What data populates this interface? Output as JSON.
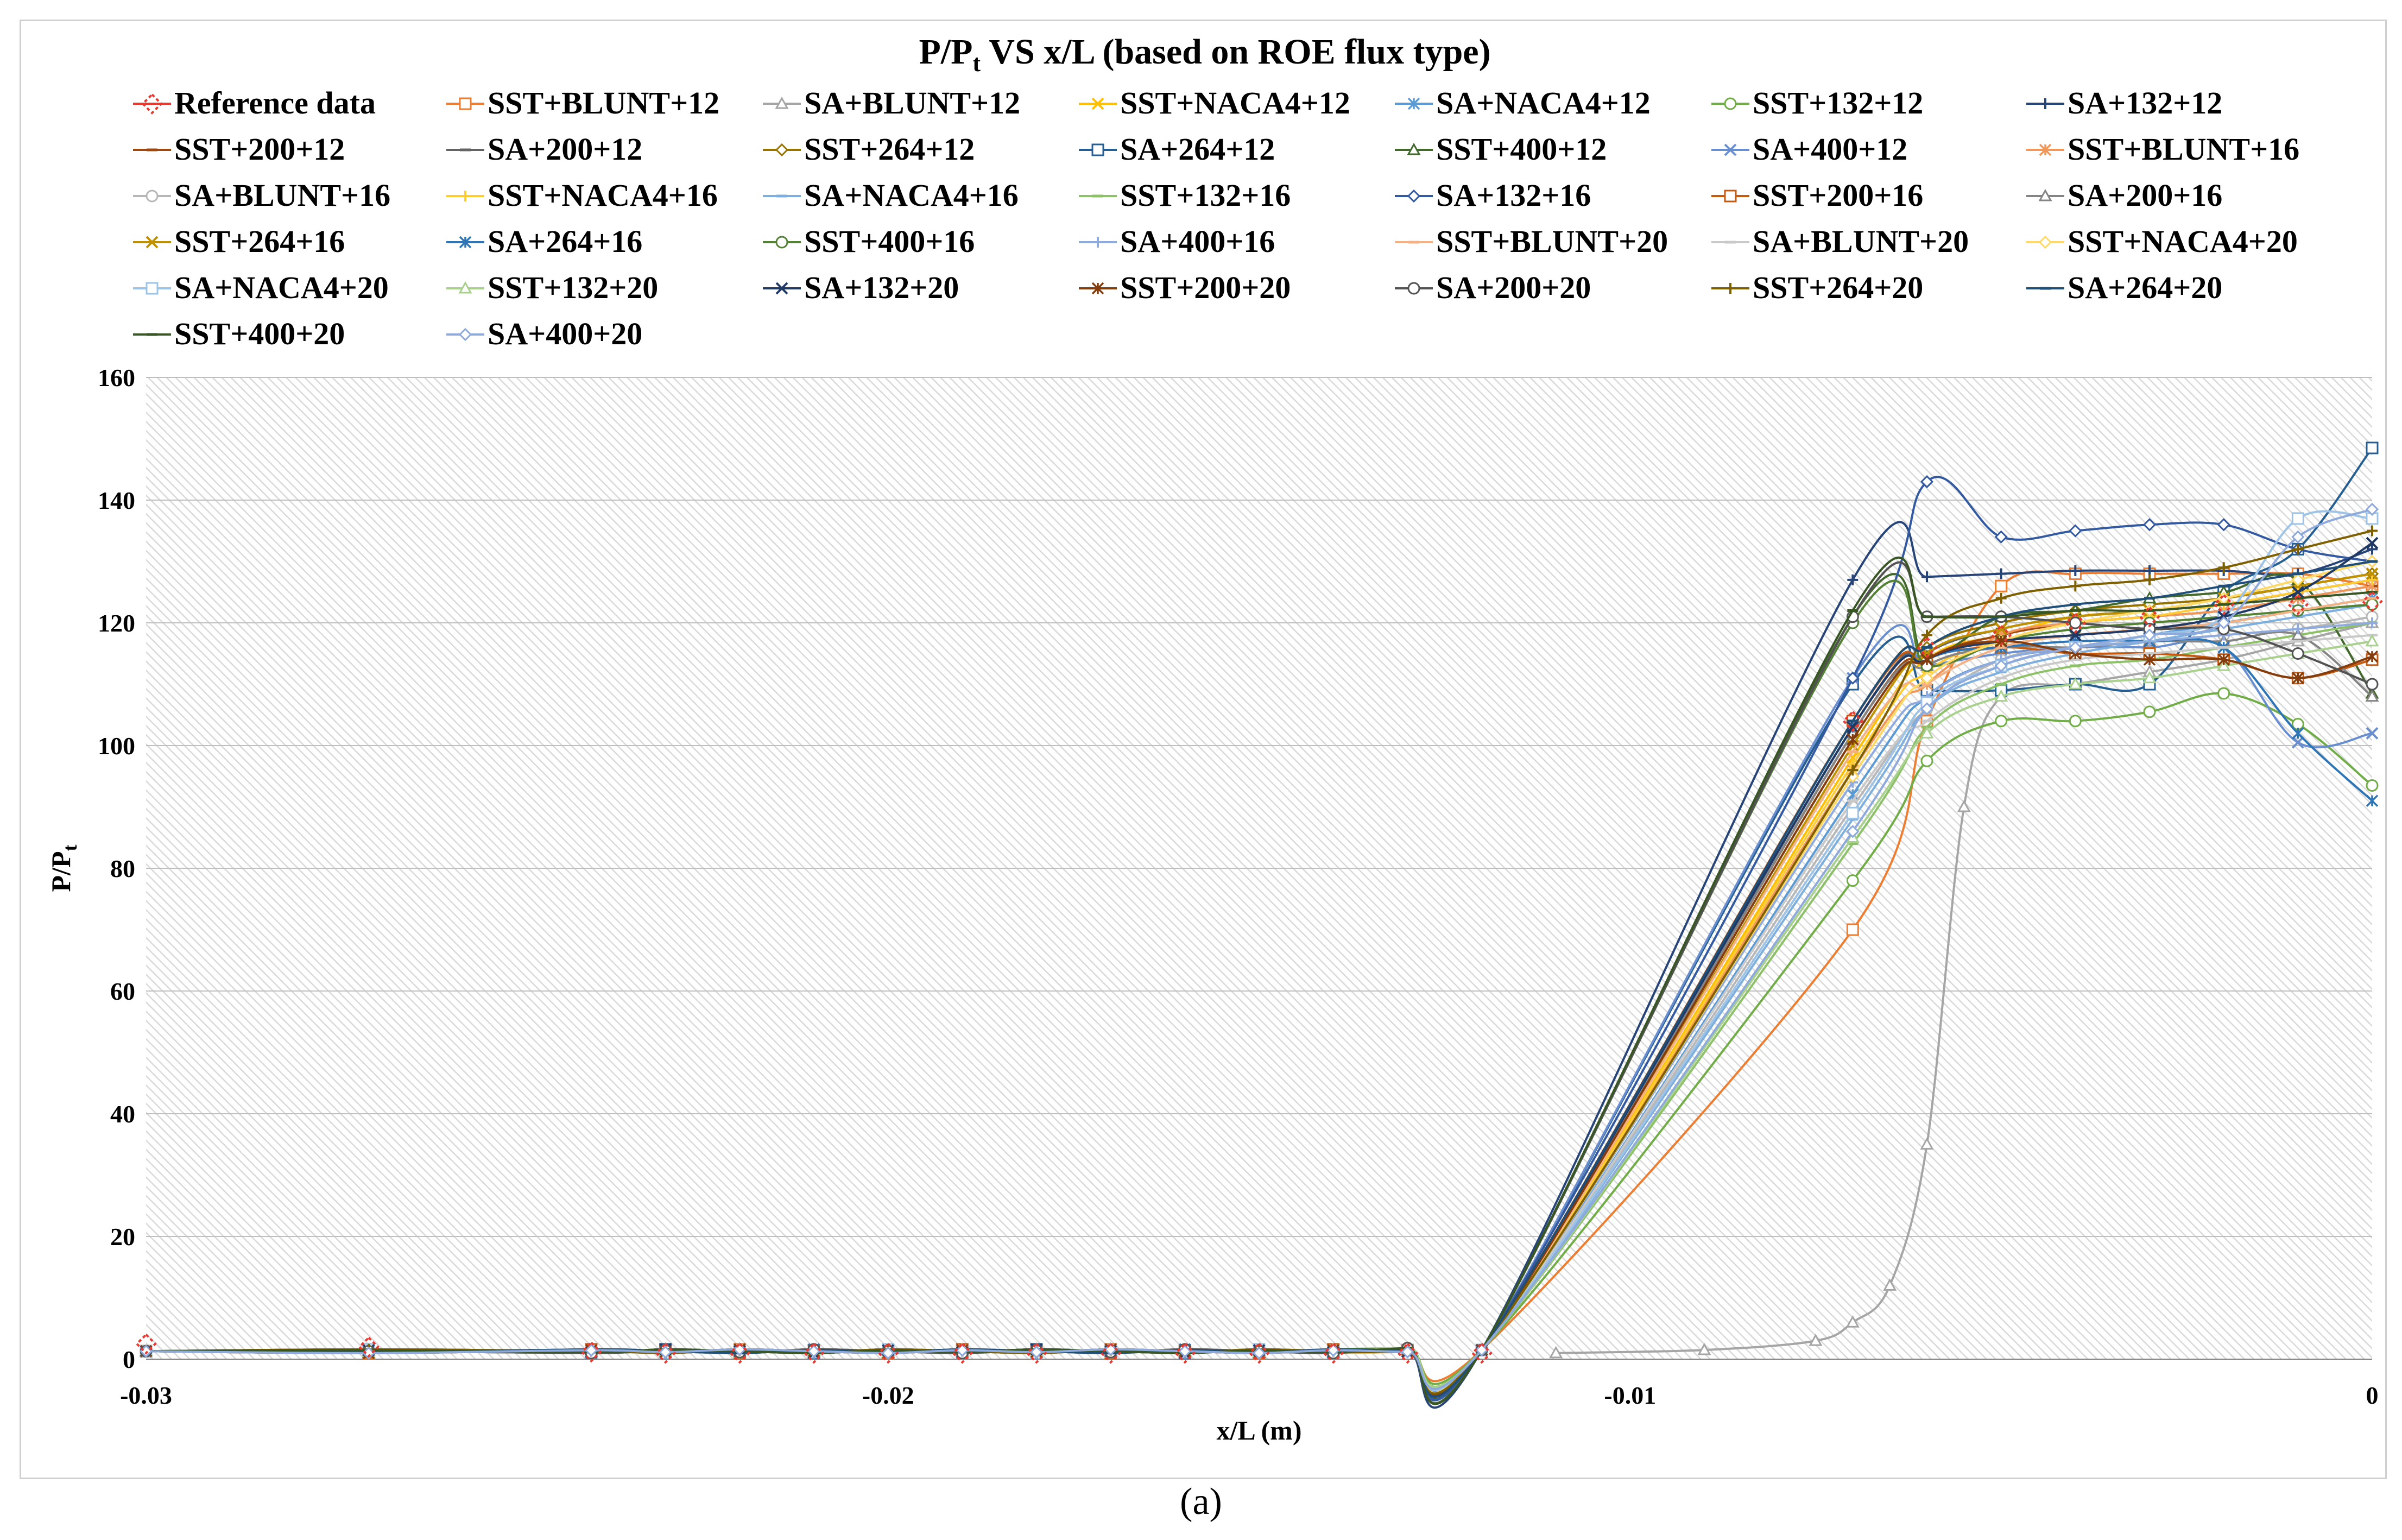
{
  "caption": "(a)",
  "chart_data": {
    "type": "line",
    "title_main": "P/P",
    "title_sub": "t",
    "title_rest": " VS x/L (based on ROE flux type)",
    "xlabel": "x/L (m)",
    "ylabel_main": "P/P",
    "ylabel_sub": "t",
    "xlim": [
      -0.03,
      0
    ],
    "ylim": [
      0,
      160
    ],
    "xticks": [
      {
        "v": -0.03,
        "label": "-0.03"
      },
      {
        "v": -0.02,
        "label": "-0.02"
      },
      {
        "v": -0.01,
        "label": "-0.01"
      },
      {
        "v": 0,
        "label": "0"
      }
    ],
    "yticks": [
      {
        "v": 0,
        "label": "0"
      },
      {
        "v": 20,
        "label": "20"
      },
      {
        "v": 40,
        "label": "40"
      },
      {
        "v": 60,
        "label": "60"
      },
      {
        "v": 80,
        "label": "80"
      },
      {
        "v": 100,
        "label": "100"
      },
      {
        "v": 120,
        "label": "120"
      },
      {
        "v": 140,
        "label": "140"
      },
      {
        "v": 160,
        "label": "160"
      }
    ],
    "legend_position": "top",
    "pre_x": [
      -0.03,
      -0.027,
      -0.024,
      -0.023,
      -0.022,
      -0.021,
      -0.02,
      -0.019,
      -0.018,
      -0.017,
      -0.016,
      -0.015,
      -0.014,
      -0.013,
      -0.012
    ],
    "post_x": [
      -0.007,
      -0.006,
      -0.005,
      -0.004,
      -0.003,
      -0.002,
      -0.001,
      0
    ],
    "series": [
      {
        "name": "Reference data",
        "color": "#e8382f",
        "marker": "diamond-dashed",
        "reference": true,
        "x": [
          -0.03,
          -0.027,
          -0.024,
          -0.023,
          -0.022,
          -0.021,
          -0.02,
          -0.019,
          -0.018,
          -0.017,
          -0.016,
          -0.015,
          -0.014,
          -0.013,
          -0.012,
          -0.011,
          -0.007,
          -0.006,
          -0.005,
          -0.004,
          -0.003,
          -0.002,
          -0.001,
          0
        ],
        "y": [
          2.5,
          2,
          1.2,
          1,
          1,
          1,
          1,
          1,
          1,
          1,
          1,
          1,
          1,
          1,
          1,
          null,
          104,
          116,
          118,
          120,
          121,
          123,
          123,
          123.5
        ]
      },
      {
        "name": "SST+BLUNT+12",
        "color": "#ed7d31",
        "marker": "square",
        "post": [
          70,
          104,
          126,
          128,
          128,
          128,
          128,
          126
        ]
      },
      {
        "name": "SA+BLUNT+12",
        "color": "#a5a5a5",
        "marker": "triangle",
        "x": [
          -0.011,
          -0.009,
          -0.0075,
          -0.007,
          -0.0065,
          -0.006,
          -0.0055,
          -0.005,
          -0.004,
          -0.003,
          -0.002,
          -0.001,
          0
        ],
        "y": [
          1,
          1.5,
          3,
          6,
          12,
          35,
          90,
          108,
          110,
          112,
          114,
          117,
          120
        ]
      },
      {
        "name": "SST+NACA4+12",
        "color": "#ffc000",
        "marker": "x",
        "post": [
          98,
          114,
          118,
          121,
          122,
          124,
          126,
          128
        ]
      },
      {
        "name": "SA+NACA4+12",
        "color": "#5b9bd5",
        "marker": "star",
        "post": [
          92,
          108,
          114,
          116,
          118,
          120,
          122,
          124
        ]
      },
      {
        "name": "SST+132+12",
        "color": "#70ad47",
        "marker": "circle",
        "post": [
          78,
          97.5,
          104,
          104,
          105.5,
          108.5,
          103.5,
          93.5
        ]
      },
      {
        "name": "SA+132+12",
        "color": "#264478",
        "marker": "plus",
        "post": [
          127,
          127.5,
          128,
          128.5,
          128.5,
          128.5,
          128,
          132
        ]
      },
      {
        "name": "SST+200+12",
        "color": "#9e480e",
        "marker": "dash",
        "post": [
          102,
          114,
          118,
          120,
          121,
          122,
          124,
          126
        ]
      },
      {
        "name": "SA+200+12",
        "color": "#636363",
        "marker": "dash",
        "post": [
          103,
          115,
          119,
          121,
          122,
          123,
          125,
          127
        ]
      },
      {
        "name": "SST+264+12",
        "color": "#997300",
        "marker": "diamond",
        "post": [
          104,
          116,
          120,
          122,
          123,
          124,
          126,
          128
        ]
      },
      {
        "name": "SA+264+12",
        "color": "#255e91",
        "marker": "square",
        "post": [
          110,
          109,
          109,
          110,
          110,
          125,
          132,
          148.5
        ]
      },
      {
        "name": "SST+400+12",
        "color": "#43682b",
        "marker": "triangle",
        "post": [
          121,
          114.5,
          121,
          122,
          124,
          125,
          127,
          108.5
        ]
      },
      {
        "name": "SA+400+12",
        "color": "#698ed0",
        "marker": "x",
        "post": [
          111,
          113,
          115,
          116,
          116,
          116,
          100.5,
          102
        ]
      },
      {
        "name": "SST+BLUNT+16",
        "color": "#f1975a",
        "marker": "star",
        "post": [
          96,
          110,
          118,
          120,
          121,
          122,
          124,
          126
        ]
      },
      {
        "name": "SA+BLUNT+16",
        "color": "#b7b7b7",
        "marker": "circle",
        "post": [
          90,
          106,
          114,
          116,
          117,
          118,
          119,
          121
        ]
      },
      {
        "name": "SST+NACA4+16",
        "color": "#ffcd33",
        "marker": "plus",
        "post": [
          97,
          112,
          117,
          120,
          121,
          123,
          125,
          127
        ]
      },
      {
        "name": "SA+NACA4+16",
        "color": "#7cafdd",
        "marker": "dash",
        "post": [
          88,
          106,
          112,
          115,
          117,
          119,
          121,
          123
        ]
      },
      {
        "name": "SST+132+16",
        "color": "#8cc168",
        "marker": "dash",
        "post": [
          84,
          103,
          110,
          113,
          114,
          116,
          118,
          120
        ]
      },
      {
        "name": "SA+132+16",
        "color": "#335aa1",
        "marker": "diamond",
        "post": [
          111,
          143,
          134,
          135,
          136,
          136,
          132,
          130
        ]
      },
      {
        "name": "SST+200+16",
        "color": "#c55a11",
        "marker": "square",
        "post": [
          104,
          114,
          116,
          115,
          115,
          114,
          111,
          114
        ]
      },
      {
        "name": "SA+200+16",
        "color": "#848484",
        "marker": "triangle",
        "post": [
          102,
          113,
          116,
          116,
          117,
          117,
          118,
          108
        ]
      },
      {
        "name": "SST+264+16",
        "color": "#bf9000",
        "marker": "x",
        "post": [
          100,
          115,
          119,
          121,
          122,
          124,
          126,
          128
        ]
      },
      {
        "name": "SA+264+16",
        "color": "#2e75b6",
        "marker": "star",
        "post": [
          103,
          114,
          116,
          117,
          117,
          116,
          102,
          91
        ]
      },
      {
        "name": "SST+400+16",
        "color": "#548235",
        "marker": "circle",
        "post": [
          120,
          113,
          117,
          119,
          120,
          121,
          122,
          123
        ]
      },
      {
        "name": "SA+400+16",
        "color": "#8faadc",
        "marker": "plus",
        "post": [
          94,
          108,
          114,
          116,
          117,
          118,
          119,
          120
        ]
      },
      {
        "name": "SST+BLUNT+20",
        "color": "#f4b183",
        "marker": "dash",
        "post": [
          99,
          110,
          116,
          118,
          119,
          120,
          122,
          124
        ]
      },
      {
        "name": "SA+BLUNT+20",
        "color": "#c9c9c9",
        "marker": "dash",
        "post": [
          91,
          104,
          111,
          114,
          115,
          116,
          117,
          118
        ]
      },
      {
        "name": "SST+NACA4+20",
        "color": "#ffd966",
        "marker": "diamond",
        "post": [
          95,
          111,
          117,
          120,
          122,
          124,
          127,
          130
        ]
      },
      {
        "name": "SA+NACA4+20",
        "color": "#9dc3e6",
        "marker": "square",
        "post": [
          89,
          107,
          113,
          116,
          118,
          121,
          137,
          137
        ]
      },
      {
        "name": "SST+132+20",
        "color": "#a9d18e",
        "marker": "triangle",
        "post": [
          85,
          102,
          108,
          110,
          111,
          113,
          115,
          117
        ]
      },
      {
        "name": "SA+132+20",
        "color": "#203864",
        "marker": "x",
        "post": [
          103,
          114,
          117,
          118,
          119,
          121,
          125,
          133
        ]
      },
      {
        "name": "SST+200+20",
        "color": "#843c0c",
        "marker": "star",
        "post": [
          101,
          114,
          117,
          115,
          114,
          114,
          111,
          114.5
        ]
      },
      {
        "name": "SA+200+20",
        "color": "#525252",
        "marker": "circle",
        "post": [
          121,
          121,
          121,
          120,
          119,
          119,
          115,
          110
        ]
      },
      {
        "name": "SST+264+20",
        "color": "#7f6000",
        "marker": "plus",
        "post": [
          96,
          118,
          124,
          126,
          127,
          129,
          132,
          135
        ]
      },
      {
        "name": "SA+264+20",
        "color": "#1f4e79",
        "marker": "dash",
        "post": [
          104,
          116,
          121,
          123,
          124,
          126,
          128,
          130
        ]
      },
      {
        "name": "SST+400+20",
        "color": "#375623",
        "marker": "dash",
        "post": [
          122,
          121,
          121,
          122,
          122,
          123,
          124,
          125
        ]
      },
      {
        "name": "SA+400+20",
        "color": "#8ea9db",
        "marker": "diamond",
        "post": [
          86,
          106,
          113,
          116,
          118,
          120,
          134,
          138.5
        ]
      }
    ]
  }
}
